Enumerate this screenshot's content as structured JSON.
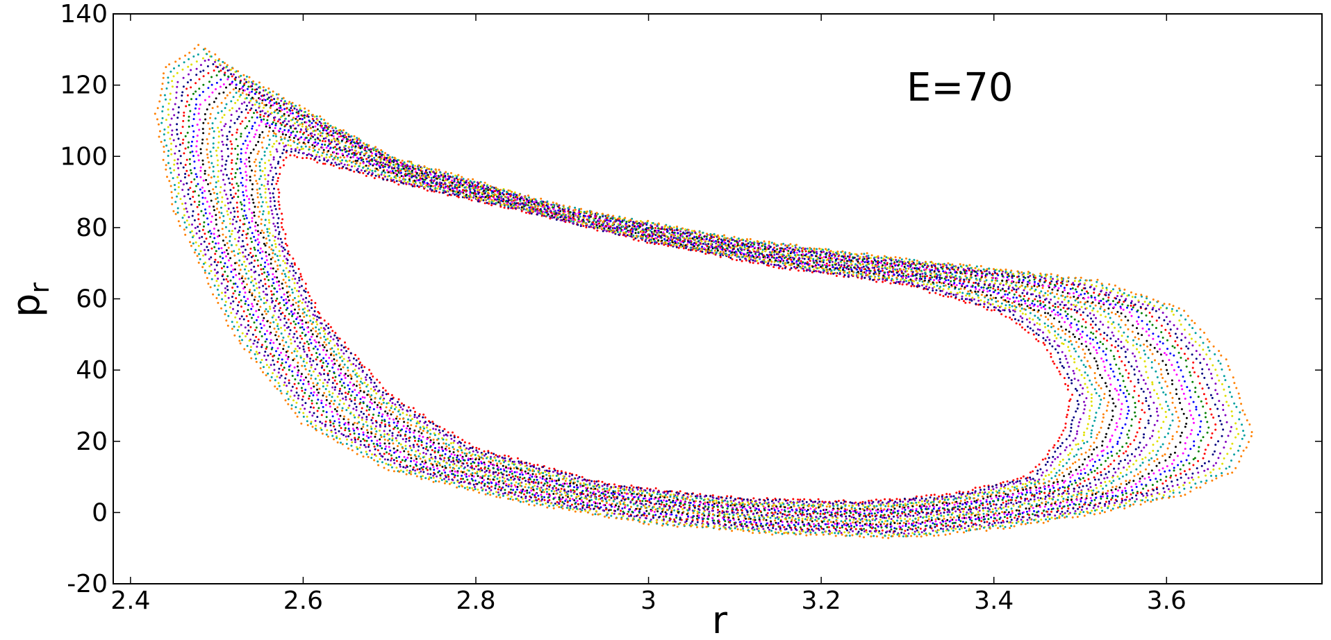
{
  "chart_data": {
    "type": "scatter",
    "title": "",
    "xlabel": "r",
    "ylabel": "p",
    "ylabel_sub": "r",
    "annotation": "E=70",
    "xlim": [
      2.38,
      3.78
    ],
    "ylim": [
      -20,
      140
    ],
    "xticks": [
      2.4,
      2.6,
      2.8,
      3.0,
      3.2,
      3.4,
      3.6
    ],
    "xtick_labels": [
      "2.4",
      "2.6",
      "2.8",
      "3",
      "3.2",
      "3.4",
      "3.6"
    ],
    "yticks": [
      -20,
      0,
      20,
      40,
      60,
      80,
      100,
      120,
      140
    ],
    "ytick_labels": [
      "-20",
      "0",
      "20",
      "40",
      "60",
      "80",
      "100",
      "120",
      "140"
    ],
    "grid": false,
    "legend": "none",
    "series_colors": [
      "#000080",
      "#00a0a0",
      "#ff00ff",
      "#ff0000",
      "#e0e000",
      "#000000",
      "#008000",
      "#8000c0",
      "#ff8000",
      "#0000ff"
    ],
    "outer_boundary": [
      [
        2.48,
        131
      ],
      [
        2.55,
        120
      ],
      [
        2.7,
        100
      ],
      [
        2.9,
        86
      ],
      [
        3.1,
        77
      ],
      [
        3.3,
        71
      ],
      [
        3.42,
        68
      ],
      [
        3.52,
        65
      ],
      [
        3.62,
        57
      ],
      [
        3.67,
        42
      ],
      [
        3.7,
        22
      ],
      [
        3.68,
        12
      ],
      [
        3.62,
        5
      ],
      [
        3.52,
        0
      ],
      [
        3.42,
        -4
      ],
      [
        3.3,
        -7
      ],
      [
        3.15,
        -6
      ],
      [
        3.0,
        -3
      ],
      [
        2.85,
        3
      ],
      [
        2.7,
        12
      ],
      [
        2.6,
        25
      ],
      [
        2.52,
        50
      ],
      [
        2.45,
        85
      ],
      [
        2.43,
        112
      ],
      [
        2.44,
        125
      ],
      [
        2.48,
        131
      ]
    ],
    "inner_boundary": [
      [
        2.58,
        101
      ],
      [
        2.7,
        93
      ],
      [
        2.85,
        85
      ],
      [
        3.0,
        76
      ],
      [
        3.15,
        69
      ],
      [
        3.3,
        64
      ],
      [
        3.41,
        56
      ],
      [
        3.46,
        47
      ],
      [
        3.49,
        33
      ],
      [
        3.48,
        22
      ],
      [
        3.44,
        10
      ],
      [
        3.35,
        5
      ],
      [
        3.25,
        3
      ],
      [
        3.1,
        4
      ],
      [
        2.95,
        8
      ],
      [
        2.8,
        18
      ],
      [
        2.7,
        33
      ],
      [
        2.62,
        55
      ],
      [
        2.58,
        75
      ],
      [
        2.57,
        92
      ],
      [
        2.58,
        101
      ]
    ]
  }
}
